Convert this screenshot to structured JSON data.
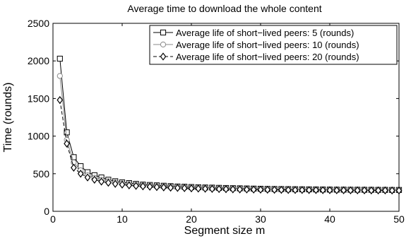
{
  "chart_data": {
    "type": "line",
    "title": "Average time to download the whole content",
    "xlabel": "Segment size m",
    "ylabel": "Time (rounds)",
    "xlim": [
      0,
      50
    ],
    "ylim": [
      0,
      2500
    ],
    "xticks": [
      0,
      10,
      20,
      30,
      40,
      50
    ],
    "yticks": [
      0,
      500,
      1000,
      1500,
      2000,
      2500
    ],
    "grid": false,
    "legend_position": "top-right",
    "x": [
      1,
      2,
      3,
      4,
      5,
      6,
      7,
      8,
      9,
      10,
      11,
      12,
      13,
      14,
      15,
      16,
      17,
      18,
      19,
      20,
      21,
      22,
      23,
      24,
      25,
      26,
      27,
      28,
      29,
      30,
      31,
      32,
      33,
      34,
      35,
      36,
      37,
      38,
      39,
      40,
      41,
      42,
      43,
      44,
      45,
      46,
      47,
      48,
      49,
      50
    ],
    "series": [
      {
        "name": "Average life of short−lived peers: 5 (rounds)",
        "marker": "square",
        "line_style": "solid",
        "color": "#000000",
        "values": [
          2030,
          1050,
          720,
          600,
          520,
          480,
          450,
          420,
          400,
          385,
          375,
          365,
          355,
          350,
          345,
          340,
          335,
          330,
          327,
          323,
          320,
          317,
          315,
          312,
          310,
          308,
          306,
          304,
          302,
          300,
          298,
          297,
          296,
          295,
          294,
          293,
          292,
          291,
          290,
          289,
          288,
          288,
          287,
          287,
          286,
          286,
          285,
          285,
          284,
          284
        ]
      },
      {
        "name": "Average life of short−lived peers: 10 (rounds)",
        "marker": "circle",
        "line_style": "solid",
        "color": "#888888",
        "values": [
          1800,
          950,
          650,
          545,
          480,
          445,
          420,
          400,
          385,
          372,
          362,
          352,
          345,
          340,
          335,
          331,
          327,
          323,
          320,
          317,
          314,
          311,
          309,
          307,
          305,
          303,
          301,
          299,
          297,
          296,
          295,
          294,
          293,
          292,
          291,
          290,
          289,
          288,
          287,
          286,
          285,
          285,
          284,
          284,
          283,
          283,
          282,
          282,
          282,
          281
        ]
      },
      {
        "name": "Average life of short−lived peers: 20 (rounds)",
        "marker": "diamond",
        "line_style": "dashed",
        "color": "#000000",
        "values": [
          1480,
          900,
          580,
          500,
          450,
          420,
          395,
          380,
          365,
          355,
          345,
          338,
          332,
          327,
          322,
          318,
          314,
          311,
          308,
          305,
          302,
          300,
          298,
          296,
          294,
          292,
          291,
          290,
          289,
          288,
          287,
          286,
          285,
          284,
          283,
          283,
          282,
          282,
          281,
          281,
          280,
          280,
          279,
          279,
          279,
          278,
          278,
          278,
          277,
          277
        ]
      }
    ]
  }
}
